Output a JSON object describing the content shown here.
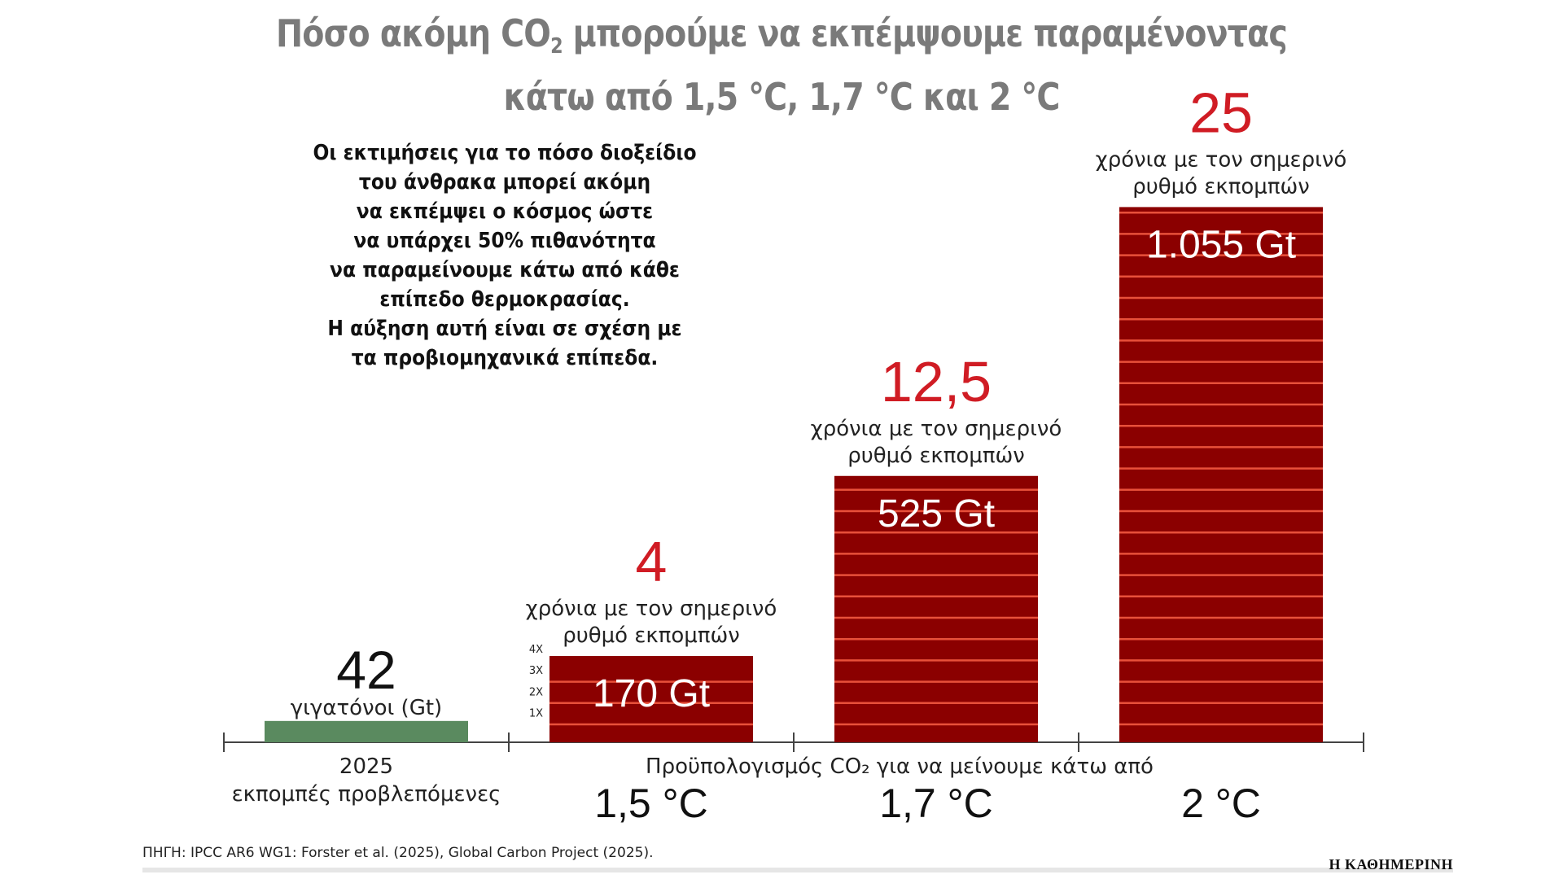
{
  "title": {
    "line1_prefix": "Πόσο ακόμη CO",
    "line1_sub": "2",
    "line1_suffix": " μπορούμε να εκπέμψουμε παραμένοντας",
    "line2": "κάτω από 1,5 °C, 1,7 °C και 2 °C"
  },
  "description": [
    "Οι εκτιμήσεις για το πόσο διοξείδιο",
    "του άνθρακα μπορεί ακόμη",
    "να εκπέμψει ο κόσμος ώστε",
    "να υπάρχει 50% πιθανότητα",
    "να παραμείνουμε κάτω από κάθε",
    "επίπεδο θερμοκρασίας.",
    "Η αύξηση αυτή είναι σε σχέση με",
    "τα προβιομηχανικά επίπεδα."
  ],
  "chart_data": {
    "type": "bar",
    "unit": "Gt",
    "categories": [
      "2025",
      "1,5 °C",
      "1,7 °C",
      "2 °C"
    ],
    "values": [
      42,
      170,
      525,
      1055
    ],
    "value_labels": [
      "42",
      "170 Gt",
      "525 Gt",
      "1.055 Gt"
    ],
    "emissions_bar": {
      "value_label": "42",
      "unit_label": "γιγατόνοι (Gt)",
      "year_label": "2025",
      "caption": "εκπομπές προβλεπόμενες",
      "color": "#5a8a5f"
    },
    "budget_bars": [
      {
        "category": "1,5 °C",
        "value": 170,
        "value_label": "170 Gt",
        "years": "4"
      },
      {
        "category": "1,7 °C",
        "value": 525,
        "value_label": "525 Gt",
        "years": "12,5"
      },
      {
        "category": "2 °C",
        "value": 1055,
        "value_label": "1.055 Gt",
        "years": "25"
      }
    ],
    "years_caption_line1": "χρόνια με τον σημερινό",
    "years_caption_line2": "ρυθμό εκπομπών",
    "multiplier_labels": [
      "4X",
      "3X",
      "2X",
      "1X"
    ],
    "budget_axis_label": "Προϋπολογισμός CO₂ για να μείνουμε κάτω από",
    "budget_color": "#8b0000",
    "stripe_color": "#e8503a",
    "years_color": "#d01c24",
    "emissions_color": "#5a8a5f"
  },
  "footer": {
    "source": "ΠΗΓΗ: IPCC AR6 WG1: Forster et al. (2025), Global Carbon Project (2025).",
    "publisher": "Η ΚΑΘΗΜΕΡΙΝΗ"
  }
}
